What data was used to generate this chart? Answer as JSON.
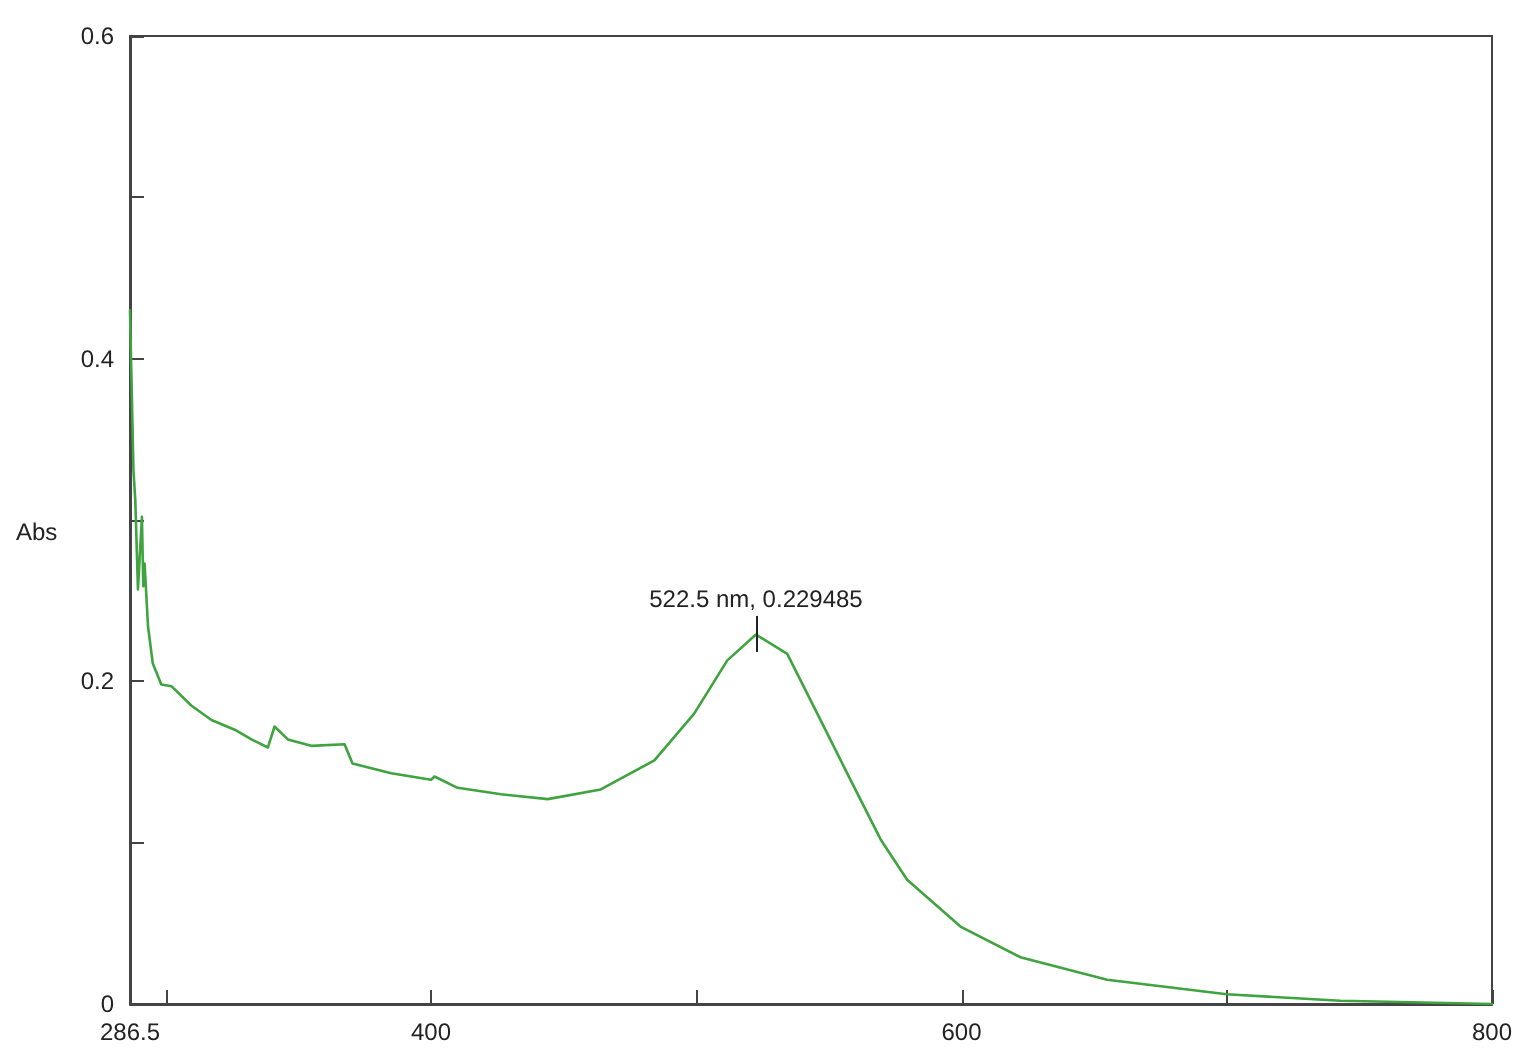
{
  "chart_data": {
    "type": "line",
    "ylabel": "Abs",
    "x": [
      286.5,
      287.8,
      288.5,
      289.5,
      291,
      291.5,
      292,
      293.3,
      295.1,
      298.3,
      302.1,
      309.6,
      317.2,
      326,
      332.3,
      338.5,
      341,
      346,
      354.8,
      367.4,
      370.4,
      385,
      400,
      401.3,
      410,
      426.4,
      444,
      464,
      484.2,
      499.2,
      511.7,
      522.5,
      534.3,
      544.4,
      556.9,
      569.5,
      579.5,
      599.6,
      622.2,
      654.9,
      700,
      742.8,
      800
    ],
    "series": [
      {
        "color": "#3fa33f",
        "values": [
          0.43,
          0.331,
          0.312,
          0.257,
          0.302,
          0.259,
          0.273,
          0.234,
          0.211,
          0.198,
          0.197,
          0.185,
          0.176,
          0.17,
          0.164,
          0.159,
          0.172,
          0.164,
          0.16,
          0.161,
          0.149,
          0.143,
          0.139,
          0.141,
          0.134,
          0.13,
          0.127,
          0.133,
          0.151,
          0.18,
          0.213,
          0.229,
          0.217,
          0.184,
          0.143,
          0.102,
          0.077,
          0.048,
          0.029,
          0.015,
          0.006,
          0.002,
          0.0
        ]
      }
    ],
    "xlim": [
      286.5,
      800
    ],
    "xticks": [
      286.5,
      {
        "value": 300,
        "label": null
      },
      400,
      {
        "value": 500,
        "label": null
      },
      600,
      {
        "value": 700,
        "label": null
      },
      800
    ],
    "ylim": [
      0,
      0.6
    ],
    "yticks": [
      0,
      {
        "value": 0.1,
        "label": null
      },
      0.2,
      {
        "value": 0.3,
        "label": null
      },
      0.4,
      {
        "value": 0.5,
        "label": null
      },
      0.6
    ],
    "annotations": [
      {
        "text": "522.5 nm, 0.229485",
        "x": 522.5,
        "y": 0.229
      }
    ],
    "grid": false,
    "marker": "none",
    "line_style": "solid"
  }
}
